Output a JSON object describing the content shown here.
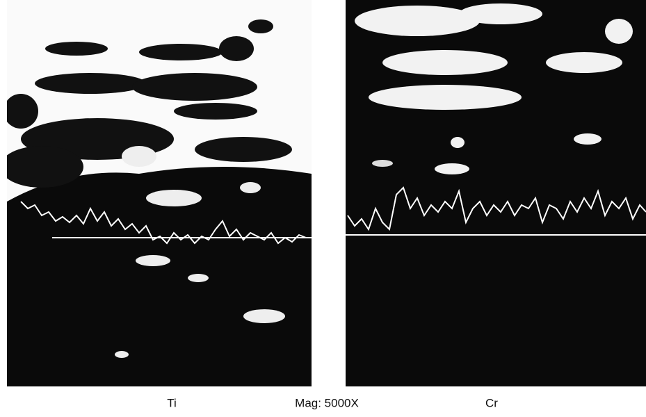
{
  "panels": [
    {
      "label": "Ti"
    },
    {
      "label": "Cr"
    }
  ],
  "caption": "Mag: 5000X"
}
